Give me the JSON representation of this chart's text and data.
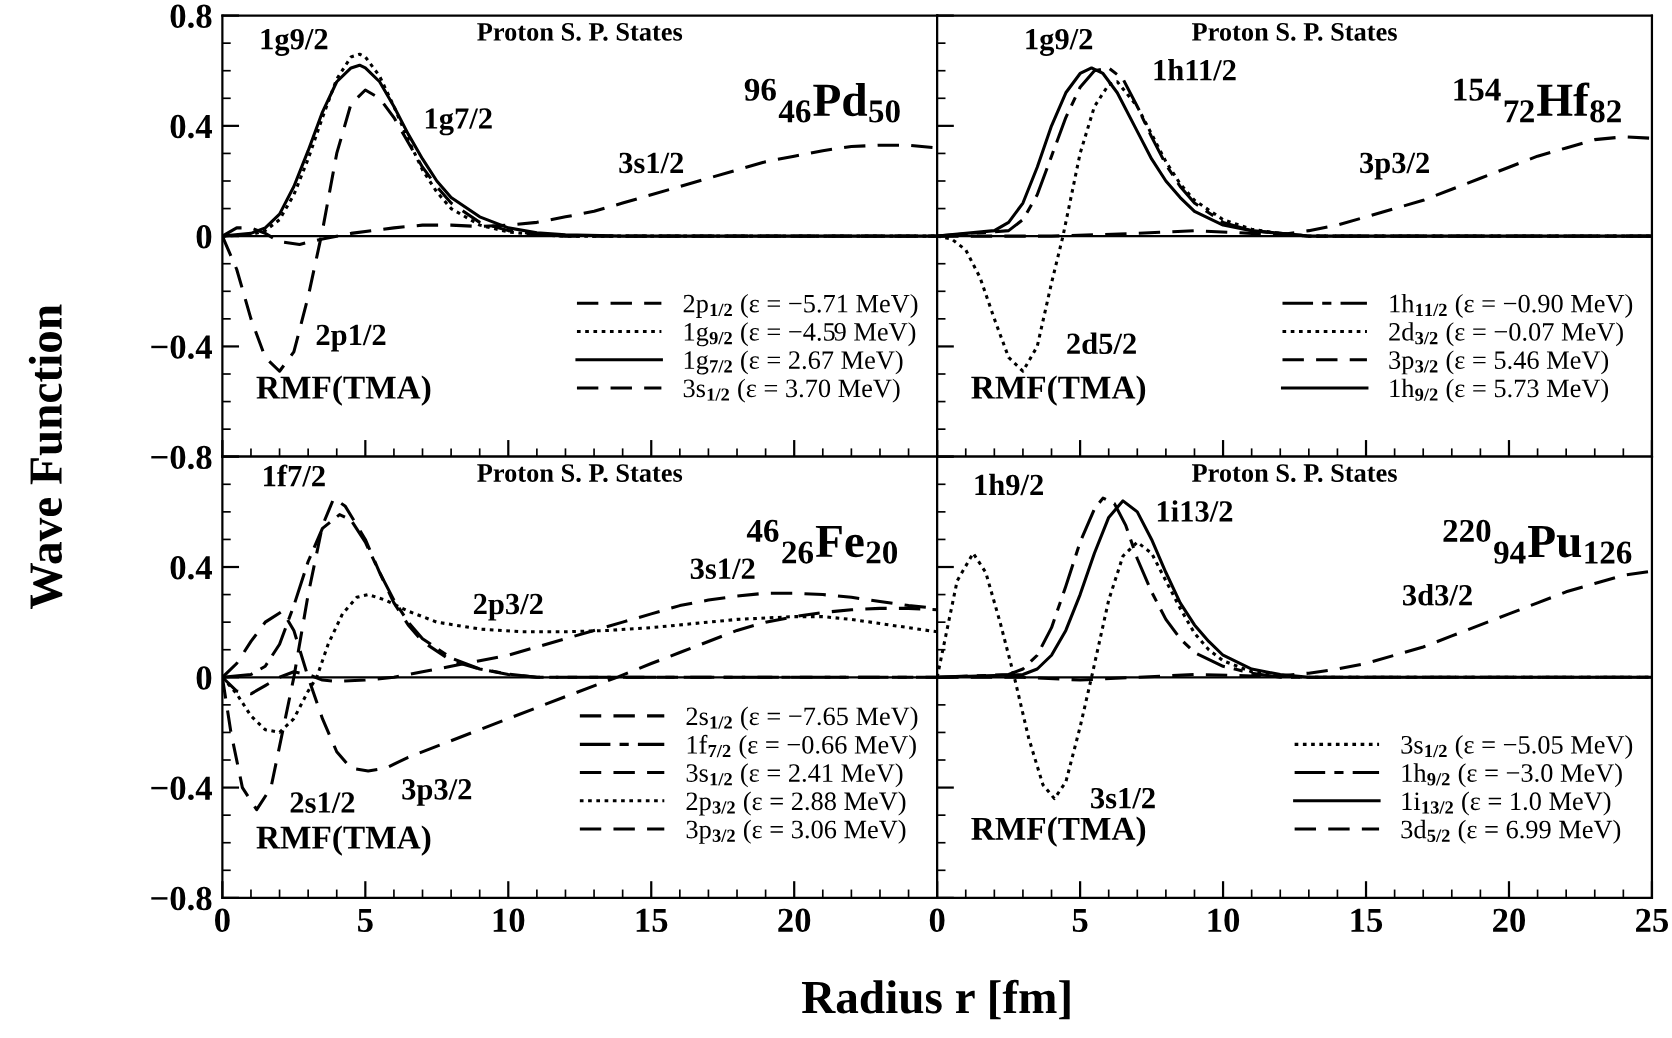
{
  "chart_data": [
    {
      "type": "line",
      "title": "Proton S. P. States",
      "ylabel": "Wave Function",
      "xlim": [
        0,
        25
      ],
      "ylim": [
        -0.8,
        0.8
      ],
      "xticks": [
        {
          "value": 0,
          "label": null
        },
        {
          "value": 5,
          "label": null
        },
        {
          "value": 10,
          "label": null
        },
        {
          "value": 15,
          "label": null
        },
        {
          "value": 20,
          "label": null
        },
        {
          "value": 25,
          "label": null
        }
      ],
      "yticks": [
        0.8,
        0.4,
        0,
        {
          "value": -0.4,
          "label": "−0.4"
        },
        {
          "value": -0.8,
          "label": "−0.8"
        }
      ],
      "tick_labels": "y",
      "legend": "lower right",
      "annotations": [
        "$^{96}$$_{46}$Pd$_{50}$",
        "RMF(TMA)",
        "1g9/2",
        "1g7/2",
        "3s1/2",
        "2p1/2"
      ],
      "series": [
        {
          "name": "2p$_{1/2}$ (ε = −5.71 MeV)",
          "color": "#000000",
          "line_style": "dashed",
          "x": [
            0,
            0.5,
            1,
            1.5,
            2,
            2.5,
            3,
            3.5,
            4,
            4.5,
            5,
            5.5,
            6,
            6.5,
            7,
            7.5,
            8,
            9,
            10,
            11,
            12,
            25
          ],
          "values": [
            0,
            -0.12,
            -0.3,
            -0.44,
            -0.49,
            -0.42,
            -0.22,
            0.02,
            0.3,
            0.48,
            0.53,
            0.5,
            0.43,
            0.34,
            0.25,
            0.18,
            0.12,
            0.05,
            0.02,
            0.007,
            0,
            0
          ]
        },
        {
          "name": "1g$_{9/2}$ (ε = −4.59 MeV)",
          "color": "#000000",
          "line_style": "dotted",
          "x": [
            0,
            1,
            1.5,
            2,
            2.5,
            3,
            3.5,
            4,
            4.5,
            4.8,
            5,
            5.5,
            6,
            6.5,
            7,
            7.5,
            8,
            9,
            10,
            11,
            12,
            25
          ],
          "values": [
            0,
            0.005,
            0.02,
            0.06,
            0.15,
            0.28,
            0.43,
            0.57,
            0.65,
            0.66,
            0.65,
            0.58,
            0.47,
            0.35,
            0.24,
            0.16,
            0.1,
            0.04,
            0.015,
            0.005,
            0,
            0
          ]
        },
        {
          "name": "1g$_{7/2}$ (ε = 2.67 MeV)",
          "color": "#000000",
          "line_style": "solid",
          "x": [
            0,
            1,
            1.5,
            2,
            2.5,
            3,
            3.5,
            4,
            4.5,
            4.8,
            5,
            5.5,
            6,
            6.5,
            7,
            7.5,
            8,
            9,
            10,
            11,
            12,
            14,
            25
          ],
          "values": [
            0,
            0.01,
            0.03,
            0.08,
            0.18,
            0.31,
            0.45,
            0.56,
            0.61,
            0.62,
            0.61,
            0.56,
            0.47,
            0.37,
            0.28,
            0.2,
            0.14,
            0.07,
            0.03,
            0.012,
            0.005,
            0,
            0
          ]
        },
        {
          "name": "3s$_{1/2}$ (ε = 3.70 MeV)",
          "color": "#000000",
          "line_style": "dashed",
          "x": [
            0,
            0.5,
            1,
            1.5,
            2,
            2.7,
            3.5,
            4.5,
            6,
            7,
            8,
            9,
            10,
            11,
            12,
            13,
            14,
            15,
            16,
            17,
            18,
            19,
            20,
            21,
            22,
            23,
            24,
            25
          ],
          "values": [
            0,
            0.03,
            0.03,
            0.01,
            -0.02,
            -0.03,
            -0.01,
            0.01,
            0.03,
            0.04,
            0.04,
            0.035,
            0.04,
            0.05,
            0.07,
            0.09,
            0.12,
            0.15,
            0.18,
            0.21,
            0.24,
            0.27,
            0.29,
            0.31,
            0.325,
            0.33,
            0.33,
            0.32
          ]
        }
      ]
    },
    {
      "type": "line",
      "title": "Proton S. P. States",
      "xlim": [
        0,
        25
      ],
      "ylim": [
        -0.8,
        0.8
      ],
      "xticks": [
        {
          "value": 0,
          "label": null
        },
        {
          "value": 5,
          "label": null
        },
        {
          "value": 10,
          "label": null
        },
        {
          "value": 15,
          "label": null
        },
        {
          "value": 20,
          "label": null
        },
        {
          "value": 25,
          "label": null
        }
      ],
      "yticks": [
        {
          "value": 0.8,
          "label": null
        },
        {
          "value": 0.4,
          "label": null
        },
        {
          "value": 0,
          "label": null
        },
        {
          "value": -0.4,
          "label": null
        },
        {
          "value": -0.8,
          "label": null
        }
      ],
      "tick_labels": false,
      "legend": "lower right",
      "annotations": [
        "$^{154}$$_{72}$Hf$_{82}$",
        "RMF(TMA)",
        "1g9/2",
        "1h11/2",
        "3p3/2",
        "2d5/2"
      ],
      "series": [
        {
          "name": "1h$_{11/2}$ (ε = −0.90 MeV)",
          "color": "#000000",
          "line_style": "dashdot",
          "x": [
            0,
            2.5,
            3,
            3.5,
            4,
            4.5,
            5,
            5.5,
            6,
            6.5,
            7,
            7.5,
            8,
            8.5,
            9,
            10,
            11,
            12,
            13,
            25
          ],
          "values": [
            0,
            0.02,
            0.06,
            0.15,
            0.29,
            0.43,
            0.54,
            0.6,
            0.61,
            0.57,
            0.47,
            0.36,
            0.26,
            0.18,
            0.12,
            0.05,
            0.02,
            0.01,
            0,
            0
          ]
        },
        {
          "name": "2d$_{3/2}$ (ε = −0.07 MeV)",
          "color": "#000000",
          "line_style": "dotted",
          "x": [
            0,
            0.5,
            1,
            1.5,
            2,
            2.5,
            3,
            3.5,
            4,
            4.4,
            5,
            5.5,
            6,
            6.3,
            7,
            7.5,
            8,
            8.5,
            9,
            10,
            11,
            12,
            13,
            25
          ],
          "values": [
            0,
            -0.01,
            -0.05,
            -0.15,
            -0.3,
            -0.44,
            -0.49,
            -0.4,
            -0.17,
            0,
            0.3,
            0.47,
            0.55,
            0.56,
            0.47,
            0.37,
            0.27,
            0.19,
            0.13,
            0.06,
            0.025,
            0.01,
            0,
            0
          ]
        },
        {
          "name": "3p$_{3/2}$ (ε = 5.46 MeV)",
          "color": "#000000",
          "line_style": "dashed",
          "x": [
            0,
            4,
            7,
            9,
            11,
            12,
            13,
            14,
            15,
            16,
            17,
            18,
            19,
            20,
            21,
            22,
            23,
            24,
            25
          ],
          "values": [
            0,
            0,
            0.01,
            0.02,
            0.01,
            0.005,
            0.02,
            0.04,
            0.07,
            0.1,
            0.13,
            0.17,
            0.21,
            0.25,
            0.29,
            0.32,
            0.35,
            0.36,
            0.355
          ]
        },
        {
          "name": "1h$_{9/2}$ (ε = 5.73 MeV)",
          "color": "#000000",
          "line_style": "solid",
          "x": [
            0,
            2,
            2.5,
            3,
            3.5,
            4,
            4.5,
            5,
            5.4,
            5.8,
            6.3,
            7,
            7.5,
            8,
            8.5,
            9,
            10,
            11,
            12,
            13,
            25
          ],
          "values": [
            0,
            0.02,
            0.05,
            0.12,
            0.25,
            0.4,
            0.52,
            0.59,
            0.61,
            0.59,
            0.52,
            0.38,
            0.28,
            0.2,
            0.14,
            0.09,
            0.04,
            0.02,
            0.01,
            0,
            0
          ]
        }
      ]
    },
    {
      "type": "line",
      "title": "Proton S. P. States",
      "xlabel": "Radius r [fm]",
      "xlim": [
        0,
        25
      ],
      "ylim": [
        -0.8,
        0.8
      ],
      "xticks": [
        0,
        5,
        10,
        15,
        20,
        {
          "value": 25,
          "label": null
        }
      ],
      "yticks": [
        {
          "value": 0.8,
          "label": null
        },
        0.4,
        0,
        {
          "value": -0.4,
          "label": "−0.4"
        },
        {
          "value": -0.8,
          "label": "−0.8"
        }
      ],
      "legend": "lower right",
      "annotations": [
        "$^{46}$$_{26}$Fe$_{20}$",
        "RMF(TMA)",
        "1f7/2",
        "2p3/2",
        "3s1/2",
        "3p3/2",
        "2s1/2"
      ],
      "series": [
        {
          "name": "2s$_{1/2}$ (ε = −7.65 MeV)",
          "color": "#000000",
          "line_style": "dashed",
          "x": [
            0,
            0.3,
            0.7,
            1.2,
            1.7,
            2.2,
            2.5,
            3,
            3.5,
            3.9,
            4.3,
            5,
            5.5,
            6,
            6.5,
            7,
            8,
            9,
            10,
            11,
            25
          ],
          "values": [
            0,
            -0.2,
            -0.4,
            -0.48,
            -0.4,
            -0.15,
            0,
            0.3,
            0.55,
            0.65,
            0.62,
            0.5,
            0.38,
            0.27,
            0.19,
            0.13,
            0.06,
            0.03,
            0.01,
            0,
            0
          ]
        },
        {
          "name": "1f$_{7/2}$ (ε = −0.66 MeV)",
          "color": "#000000",
          "line_style": "dashdot",
          "x": [
            0,
            1,
            1.5,
            2,
            2.5,
            3,
            3.5,
            4.1,
            4.5,
            5,
            5.5,
            6,
            6.5,
            7,
            8,
            9,
            10,
            11,
            25
          ],
          "values": [
            0,
            0.01,
            0.04,
            0.12,
            0.26,
            0.42,
            0.54,
            0.59,
            0.57,
            0.49,
            0.38,
            0.28,
            0.2,
            0.14,
            0.07,
            0.03,
            0.012,
            0,
            0
          ]
        },
        {
          "name": "3s$_{1/2}$ (ε = 2.41 MeV)",
          "color": "#000000",
          "line_style": "dashed",
          "x": [
            0,
            0.5,
            1,
            1.5,
            2,
            2.5,
            3,
            3.5,
            4,
            5,
            6,
            7,
            8,
            9,
            10,
            11,
            12,
            13,
            14,
            15,
            16,
            17,
            18,
            19,
            20,
            21,
            22,
            23,
            24,
            25
          ],
          "values": [
            0,
            -0.05,
            -0.06,
            -0.03,
            0,
            0.02,
            0.01,
            -0.01,
            -0.015,
            -0.01,
            0,
            0.02,
            0.04,
            0.06,
            0.08,
            0.11,
            0.14,
            0.17,
            0.2,
            0.23,
            0.26,
            0.28,
            0.295,
            0.305,
            0.305,
            0.3,
            0.29,
            0.275,
            0.26,
            0.25
          ]
        },
        {
          "name": "2p$_{3/2}$ (ε = 2.88 MeV)",
          "color": "#000000",
          "line_style": "dotted",
          "x": [
            0,
            0.5,
            1,
            1.5,
            2,
            2.5,
            3,
            3.3,
            3.7,
            4.2,
            4.7,
            5.1,
            5.7,
            6.5,
            7.5,
            9,
            10.5,
            12,
            13.5,
            15,
            16.5,
            18,
            19,
            20,
            21,
            22,
            23,
            24,
            25
          ],
          "values": [
            0,
            -0.06,
            -0.14,
            -0.19,
            -0.2,
            -0.15,
            -0.05,
            0,
            0.12,
            0.23,
            0.29,
            0.3,
            0.28,
            0.24,
            0.2,
            0.175,
            0.165,
            0.165,
            0.17,
            0.18,
            0.195,
            0.21,
            0.215,
            0.22,
            0.22,
            0.21,
            0.195,
            0.18,
            0.165
          ]
        },
        {
          "name": "3p$_{3/2}$ (ε = 3.06 MeV)",
          "color": "#000000",
          "line_style": "dashed",
          "x": [
            0,
            0.5,
            1,
            1.5,
            2.1,
            2.5,
            3,
            3.5,
            4,
            4.5,
            5.1,
            5.7,
            6.5,
            8,
            10,
            12,
            13.8,
            15,
            16,
            17,
            18,
            19,
            20,
            21,
            22,
            23,
            24,
            25
          ],
          "values": [
            0,
            0.05,
            0.13,
            0.2,
            0.24,
            0.17,
            0,
            -0.15,
            -0.27,
            -0.33,
            -0.34,
            -0.33,
            -0.29,
            -0.23,
            -0.15,
            -0.07,
            0,
            0.05,
            0.09,
            0.13,
            0.17,
            0.2,
            0.22,
            0.235,
            0.245,
            0.25,
            0.25,
            0.245
          ]
        }
      ]
    },
    {
      "type": "line",
      "title": "Proton S. P. States",
      "xlim": [
        0,
        25
      ],
      "ylim": [
        -0.8,
        0.8
      ],
      "xticks": [
        0,
        5,
        10,
        15,
        20,
        25
      ],
      "yticks": [
        {
          "value": 0.8,
          "label": null
        },
        {
          "value": 0.4,
          "label": null
        },
        {
          "value": 0,
          "label": null
        },
        {
          "value": -0.4,
          "label": null
        },
        {
          "value": -0.8,
          "label": null
        }
      ],
      "tick_labels": "x",
      "legend": "lower right",
      "annotations": [
        "$^{220}$$_{94}$Pu$_{126}$",
        "RMF(TMA)",
        "1h9/2",
        "1i13/2",
        "3d3/2",
        "3s1/2"
      ],
      "series": [
        {
          "name": "3s$_{1/2}$ (ε = −5.05 MeV)",
          "color": "#000000",
          "line_style": "dotted",
          "x": [
            0,
            0.3,
            0.7,
            1.26,
            1.7,
            2.2,
            2.7,
            3.2,
            3.7,
            4.1,
            4.5,
            5,
            5.4,
            6,
            6.5,
            7,
            7.5,
            8,
            8.5,
            9,
            9.5,
            10,
            11,
            12,
            13,
            25
          ],
          "values": [
            0,
            0.15,
            0.35,
            0.45,
            0.38,
            0.2,
            0,
            -0.22,
            -0.39,
            -0.44,
            -0.38,
            -0.18,
            0,
            0.28,
            0.44,
            0.49,
            0.45,
            0.35,
            0.25,
            0.16,
            0.1,
            0.06,
            0.02,
            0.005,
            0,
            0
          ]
        },
        {
          "name": "1h$_{9/2}$ (ε = −3.0 MeV)",
          "color": "#000000",
          "line_style": "dashdot",
          "x": [
            0,
            2.5,
            3,
            3.5,
            4,
            4.5,
            5,
            5.5,
            5.8,
            6.2,
            6.6,
            7,
            7.5,
            8,
            8.5,
            9,
            10,
            11,
            12,
            25
          ],
          "values": [
            0,
            0.01,
            0.03,
            0.08,
            0.18,
            0.33,
            0.49,
            0.61,
            0.65,
            0.63,
            0.55,
            0.43,
            0.31,
            0.21,
            0.14,
            0.09,
            0.04,
            0.015,
            0,
            0
          ]
        },
        {
          "name": "1i$_{13/2}$ (ε = 1.0 MeV)",
          "color": "#000000",
          "line_style": "solid",
          "x": [
            0,
            3,
            3.5,
            4,
            4.5,
            5,
            5.5,
            6,
            6.5,
            7,
            7.5,
            8,
            8.5,
            9,
            9.5,
            10,
            11,
            12,
            13,
            25
          ],
          "values": [
            0,
            0.01,
            0.03,
            0.08,
            0.17,
            0.3,
            0.45,
            0.58,
            0.64,
            0.6,
            0.5,
            0.38,
            0.27,
            0.19,
            0.13,
            0.08,
            0.03,
            0.01,
            0,
            0
          ]
        },
        {
          "name": "3d$_{5/2}$ (ε = 6.99 MeV)",
          "color": "#000000",
          "line_style": "dashed",
          "x": [
            0,
            3,
            5,
            7,
            9,
            11,
            12,
            13,
            14,
            15,
            16,
            17,
            18,
            19,
            20,
            21,
            22,
            23,
            24,
            25
          ],
          "values": [
            0,
            0,
            -0.01,
            0,
            0.01,
            0.005,
            0.005,
            0.015,
            0.03,
            0.05,
            0.08,
            0.11,
            0.15,
            0.19,
            0.23,
            0.27,
            0.31,
            0.34,
            0.37,
            0.385
          ]
        }
      ]
    }
  ]
}
